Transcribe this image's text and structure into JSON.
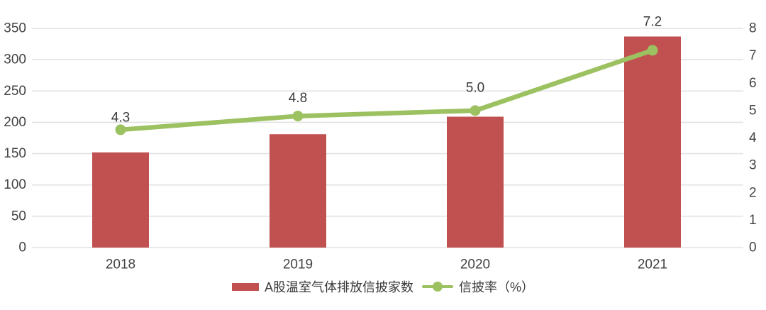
{
  "chart_data": {
    "type": "bar",
    "subtype": "combo-bar-line",
    "categories": [
      "2018",
      "2019",
      "2020",
      "2021"
    ],
    "series": [
      {
        "name": "A股温室气体排放信披家数",
        "type": "bar",
        "axis": "left",
        "values": [
          152,
          181,
          209,
          337
        ],
        "color": "#C05150"
      },
      {
        "name": "信披率（%）",
        "type": "line",
        "axis": "right",
        "values": [
          4.3,
          4.8,
          5.0,
          7.2
        ],
        "point_labels": [
          "4.3",
          "4.8",
          "5.0",
          "7.2"
        ],
        "color": "#9CC161"
      }
    ],
    "left_axis": {
      "min": 0,
      "max": 350,
      "step": 50,
      "ticks": [
        "0",
        "50",
        "100",
        "150",
        "200",
        "250",
        "300",
        "350"
      ]
    },
    "right_axis": {
      "min": 0,
      "max": 8,
      "step": 1,
      "ticks": [
        "0",
        "1",
        "2",
        "3",
        "4",
        "5",
        "6",
        "7",
        "8"
      ]
    },
    "title": "",
    "xlabel": "",
    "ylabel": "",
    "grid": true,
    "legend_position": "bottom",
    "colors": {
      "bar": "#C05150",
      "line": "#9CC161",
      "grid": "#E2E2E2",
      "tick_text": "#434343",
      "label_text": "#3a3a3a",
      "background": "#FFFFFF"
    }
  }
}
